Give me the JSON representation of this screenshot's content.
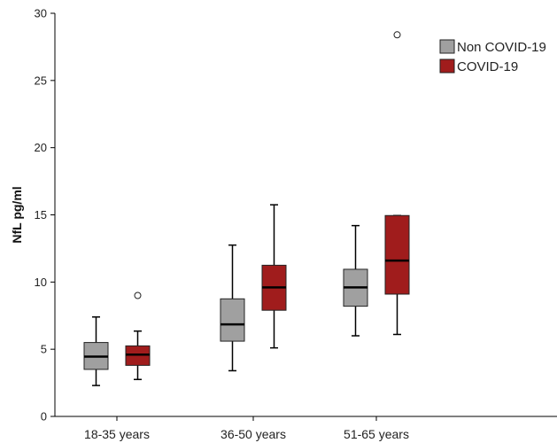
{
  "chart_data": {
    "type": "box",
    "title": "",
    "xlabel": "",
    "ylabel": "NfL pg/ml",
    "ylim": [
      0,
      30
    ],
    "yticks": [
      0,
      5,
      10,
      15,
      20,
      25,
      30
    ],
    "categories": [
      "18-35 years",
      "36-50 years",
      "51-65 years"
    ],
    "legend_position": "top-right",
    "series": [
      {
        "name": "Non COVID-19",
        "color": "#a0a0a0",
        "boxes": [
          {
            "min": 2.3,
            "q1": 3.5,
            "median": 4.45,
            "q3": 5.5,
            "max": 7.4,
            "outliers": []
          },
          {
            "min": 3.4,
            "q1": 5.6,
            "median": 6.85,
            "q3": 8.75,
            "max": 12.75,
            "outliers": []
          },
          {
            "min": 6.0,
            "q1": 8.2,
            "median": 9.6,
            "q3": 10.95,
            "max": 14.2,
            "outliers": []
          }
        ]
      },
      {
        "name": "COVID-19",
        "color": "#a01c1c",
        "boxes": [
          {
            "min": 2.75,
            "q1": 3.8,
            "median": 4.6,
            "q3": 5.25,
            "max": 6.35,
            "outliers": [
              9.0
            ]
          },
          {
            "min": 5.1,
            "q1": 7.9,
            "median": 9.6,
            "q3": 11.25,
            "max": 15.75,
            "outliers": []
          },
          {
            "min": 6.1,
            "q1": 9.1,
            "median": 11.6,
            "q3": 14.95,
            "max": 14.95,
            "outliers": [
              28.4
            ]
          }
        ]
      }
    ]
  }
}
